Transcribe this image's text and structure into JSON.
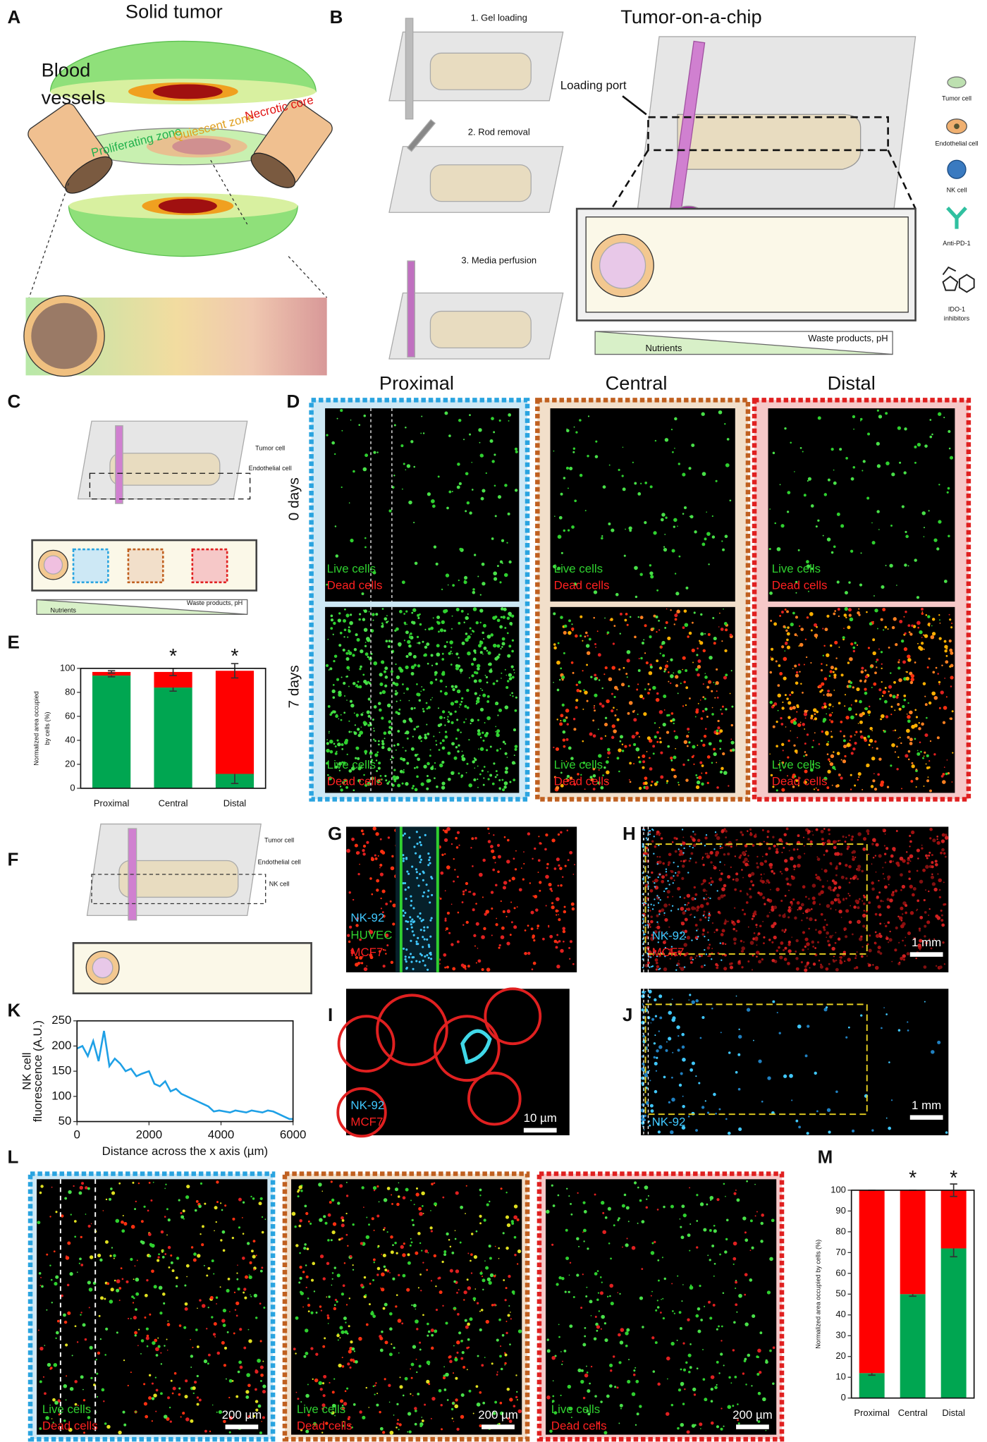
{
  "panels": {
    "A": {
      "letter": "A",
      "title": "Solid tumor",
      "blood_vessels": [
        "Blood",
        "vessels"
      ],
      "zones": [
        "Proliferating zone",
        "Quiescent zone",
        "Necrotic core"
      ]
    },
    "B": {
      "letter": "B",
      "steps": [
        "1. Gel loading",
        "2. Rod removal",
        "3. Media perfusion"
      ],
      "title": "Tumor-on-a-chip",
      "loading_port": "Loading port",
      "legend": [
        "Tumor cell",
        "Endothelial cell",
        "NK cell",
        "Anti-PD-1",
        "IDO-1",
        "inhibitors"
      ],
      "gradient": [
        "Nutrients",
        "Waste products, pH"
      ]
    },
    "C": {
      "letter": "C",
      "legend": [
        "Tumor cell",
        "Endothelial cell"
      ],
      "gradient": [
        "Nutrients",
        "Waste products, pH"
      ]
    },
    "D": {
      "letter": "D",
      "columns": [
        "Proximal",
        "Central",
        "Distal"
      ],
      "rows": [
        "0 days",
        "7 days"
      ],
      "stain": [
        "Live cells",
        "Dead cells"
      ]
    },
    "E": {
      "letter": "E"
    },
    "F": {
      "letter": "F",
      "legend": [
        "Tumor cell",
        "Endothelial cell",
        "NK cell"
      ]
    },
    "G": {
      "letter": "G",
      "stain": [
        "NK-92",
        "HUVEC",
        "MCF7"
      ]
    },
    "H": {
      "letter": "H",
      "stain": [
        "NK-92",
        "MCF7"
      ],
      "scale_bar": "1 mm"
    },
    "I": {
      "letter": "I",
      "stain": [
        "NK-92",
        "MCF7"
      ],
      "scale_bar": "10 µm"
    },
    "J": {
      "letter": "J",
      "stain": [
        "NK-92"
      ],
      "scale_bar": "1 mm"
    },
    "K": {
      "letter": "K"
    },
    "L": {
      "letter": "L",
      "stain": [
        "Live cells",
        "Dead cells"
      ],
      "scale_bar": "200 µm"
    },
    "M": {
      "letter": "M"
    }
  },
  "chart_data": [
    {
      "type": "bar",
      "stacked": true,
      "ylabel": [
        "Normalized area occupied",
        "by cells (%)"
      ],
      "categories": [
        "Proximal",
        "Central",
        "Distal"
      ],
      "series": [
        {
          "color": "#00a651",
          "values": [
            94,
            84,
            12
          ],
          "errors": [
            1,
            3,
            8
          ]
        },
        {
          "color": "#ff0000",
          "values": [
            3,
            13,
            86
          ],
          "errors": [
            1,
            3,
            6
          ]
        }
      ],
      "ylim": [
        0,
        100
      ],
      "yticks": [
        0,
        20,
        40,
        60,
        80,
        100
      ],
      "annotations": [
        null,
        "*",
        "*"
      ]
    },
    {
      "type": "line",
      "ylabel": [
        "NK cell",
        "fluorescence (A.U.)"
      ],
      "xlabel": "Distance across the x axis (µm)",
      "x": [
        0,
        150,
        300,
        450,
        600,
        750,
        900,
        1050,
        1200,
        1350,
        1500,
        1650,
        1800,
        2000,
        2150,
        2300,
        2450,
        2600,
        2750,
        2900,
        3050,
        3200,
        3350,
        3500,
        3650,
        3800,
        3950,
        4100,
        4250,
        4400,
        4550,
        4700,
        4850,
        5000,
        5150,
        5300,
        5450,
        5600,
        5750,
        5900,
        6000
      ],
      "series": [
        {
          "color": "#1ea0e6",
          "values": [
            195,
            200,
            180,
            210,
            170,
            230,
            160,
            175,
            165,
            150,
            155,
            140,
            145,
            150,
            125,
            120,
            130,
            110,
            115,
            105,
            100,
            95,
            90,
            85,
            80,
            70,
            72,
            70,
            68,
            72,
            70,
            68,
            72,
            70,
            68,
            72,
            70,
            65,
            60,
            55,
            55
          ]
        }
      ],
      "xlim": [
        0,
        6000
      ],
      "xticks": [
        0,
        2000,
        4000,
        6000
      ],
      "ylim": [
        50,
        250
      ],
      "yticks": [
        50,
        100,
        150,
        200,
        250
      ]
    },
    {
      "type": "bar",
      "stacked": true,
      "ylabel": [
        "Normalized area occupied by cells (%)"
      ],
      "categories": [
        "Proximal",
        "Central",
        "Distal"
      ],
      "series": [
        {
          "color": "#00a651",
          "values": [
            12,
            50,
            72
          ],
          "errors": [
            1,
            1,
            4
          ]
        },
        {
          "color": "#ff0000",
          "values": [
            88,
            50,
            28
          ],
          "errors": [
            0,
            0,
            3
          ]
        }
      ],
      "ylim": [
        0,
        100
      ],
      "yticks": [
        0,
        10,
        20,
        30,
        40,
        50,
        60,
        70,
        80,
        90,
        100
      ],
      "annotations": [
        null,
        "*",
        "*"
      ]
    }
  ]
}
